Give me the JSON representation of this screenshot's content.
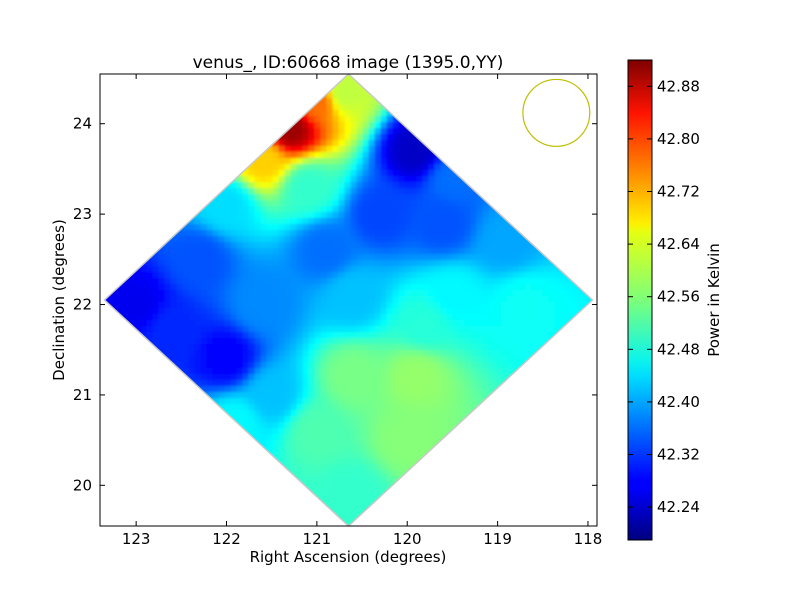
{
  "chart_data": {
    "type": "heatmap",
    "title": "venus_, ID:60668 image (1395.0,YY)",
    "xlabel": "Right Ascension (degrees)",
    "ylabel": "Declination (degrees)",
    "xlim": [
      123.4,
      117.9
    ],
    "ylim": [
      19.55,
      24.55
    ],
    "x_ticks": [
      123,
      122,
      121,
      120,
      119,
      118
    ],
    "y_ticks": [
      20,
      21,
      22,
      23,
      24
    ],
    "colorbar": {
      "label": "Power in Kelvin",
      "range": [
        42.19,
        42.92
      ],
      "ticks": [
        "42.24",
        "42.32",
        "42.40",
        "42.48",
        "42.56",
        "42.64",
        "42.72",
        "42.80",
        "42.88"
      ],
      "colormap": "jet"
    },
    "map_region": {
      "shape": "diamond",
      "center": [
        120.65,
        22.05
      ],
      "ra_half_width": 2.7,
      "dec_half_height": 2.5
    },
    "features": [
      {
        "ra": 121.3,
        "dec": 23.95,
        "value": 42.9
      },
      {
        "ra": 121.0,
        "dec": 24.25,
        "value": 42.75
      },
      {
        "ra": 121.6,
        "dec": 23.6,
        "value": 42.68
      },
      {
        "ra": 120.7,
        "dec": 24.35,
        "value": 42.6
      },
      {
        "ra": 119.9,
        "dec": 23.7,
        "value": 42.24
      },
      {
        "ra": 120.3,
        "dec": 23.0,
        "value": 42.33
      },
      {
        "ra": 119.6,
        "dec": 22.9,
        "value": 42.34
      },
      {
        "ra": 120.9,
        "dec": 22.6,
        "value": 42.36
      },
      {
        "ra": 122.3,
        "dec": 22.5,
        "value": 42.34
      },
      {
        "ra": 123.0,
        "dec": 22.0,
        "value": 42.27
      },
      {
        "ra": 122.6,
        "dec": 21.7,
        "value": 42.31
      },
      {
        "ra": 122.0,
        "dec": 21.4,
        "value": 42.28
      },
      {
        "ra": 121.6,
        "dec": 22.0,
        "value": 42.38
      },
      {
        "ra": 121.5,
        "dec": 21.0,
        "value": 42.42
      },
      {
        "ra": 120.6,
        "dec": 21.2,
        "value": 42.55
      },
      {
        "ra": 119.9,
        "dec": 21.2,
        "value": 42.57
      },
      {
        "ra": 120.0,
        "dec": 20.5,
        "value": 42.56
      },
      {
        "ra": 120.6,
        "dec": 19.9,
        "value": 42.5
      },
      {
        "ra": 121.0,
        "dec": 20.6,
        "value": 42.52
      },
      {
        "ra": 121.9,
        "dec": 20.7,
        "value": 42.46
      },
      {
        "ra": 119.5,
        "dec": 22.1,
        "value": 42.46
      },
      {
        "ra": 118.7,
        "dec": 22.0,
        "value": 42.47
      },
      {
        "ra": 119.8,
        "dec": 21.8,
        "value": 42.49
      },
      {
        "ra": 122.0,
        "dec": 23.1,
        "value": 42.44
      },
      {
        "ra": 121.1,
        "dec": 23.3,
        "value": 42.5
      },
      {
        "ra": 118.9,
        "dec": 22.7,
        "value": 42.4
      },
      {
        "ra": 119.5,
        "dec": 23.4,
        "value": 42.36
      },
      {
        "ra": 120.6,
        "dec": 22.1,
        "value": 42.42
      }
    ],
    "beam": {
      "ra": 118.35,
      "dec": 24.12,
      "radius_deg": 0.37,
      "color": "#bfbf00"
    }
  }
}
